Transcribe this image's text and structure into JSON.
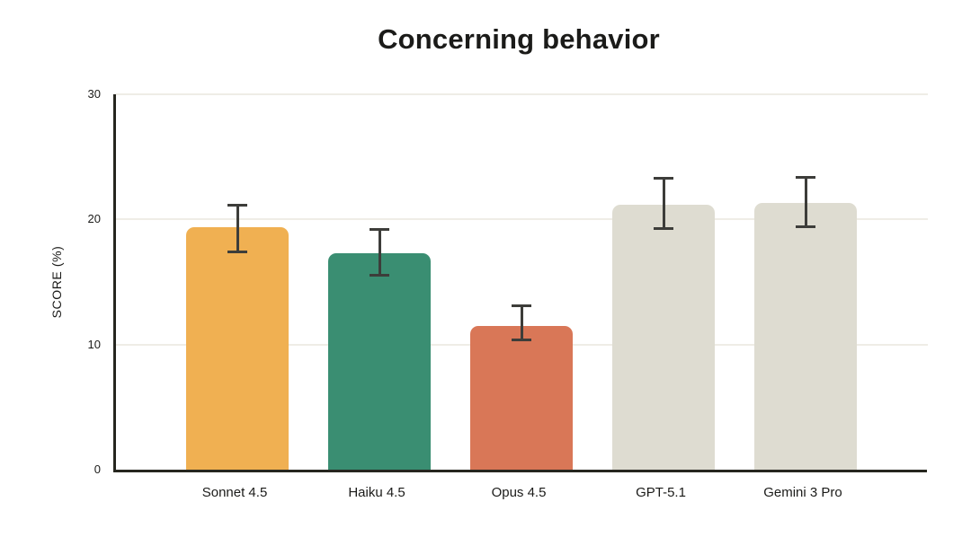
{
  "title": "Concerning behavior",
  "chart_data": {
    "type": "bar",
    "title": "Concerning behavior",
    "xlabel": "",
    "ylabel": "SCORE (%)",
    "ylim": [
      0,
      30
    ],
    "yticks": [
      0,
      10,
      20,
      30
    ],
    "grid": true,
    "legend": "none",
    "categories": [
      "Sonnet 4.5",
      "Haiku 4.5",
      "Opus 4.5",
      "GPT-5.1",
      "Gemini 3 Pro"
    ],
    "values": [
      19.4,
      17.3,
      11.5,
      21.2,
      21.3
    ],
    "error_low": [
      17.4,
      15.5,
      10.3,
      19.2,
      19.4
    ],
    "error_high": [
      21.2,
      19.2,
      13.1,
      23.3,
      23.4
    ],
    "bar_colors": [
      "#F0B052",
      "#3A8E72",
      "#D97757",
      "#DEDCD1",
      "#DEDCD1"
    ]
  },
  "colors": {
    "background": "#FFFFFF",
    "axis": "#26261F",
    "grid": "#EFEDE6",
    "error_bar": "#3D3D3A",
    "text": "#1B1B19"
  }
}
